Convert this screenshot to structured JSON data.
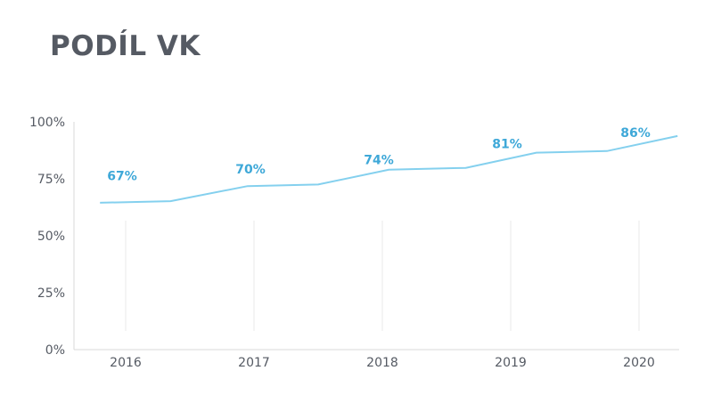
{
  "chart_data": {
    "type": "line",
    "title": "PODÍL VK",
    "xlabel": "",
    "ylabel": "",
    "categories": [
      "2016",
      "2017",
      "2018",
      "2019",
      "2020"
    ],
    "y_tick_labels": [
      "0%",
      "25%",
      "50%",
      "75%",
      "100%"
    ],
    "ylim": [
      0,
      100
    ],
    "series": [
      {
        "values": [
          67,
          70,
          74,
          81,
          86
        ],
        "data_labels": [
          "67%",
          "70%",
          "74%",
          "81%",
          "86%"
        ],
        "line_points": [
          {
            "x": 2015.8,
            "y": 64.5
          },
          {
            "x": 2016.35,
            "y": 65.2
          },
          {
            "x": 2016.95,
            "y": 71.8
          },
          {
            "x": 2017.5,
            "y": 72.5
          },
          {
            "x": 2018.05,
            "y": 79.0
          },
          {
            "x": 2018.65,
            "y": 79.8
          },
          {
            "x": 2019.2,
            "y": 86.5
          },
          {
            "x": 2019.75,
            "y": 87.2
          },
          {
            "x": 2020.3,
            "y": 93.8
          }
        ],
        "color": "#84d0ee"
      }
    ],
    "label_color": "#3ea8d8",
    "grid": "vertical",
    "legend": "none"
  }
}
